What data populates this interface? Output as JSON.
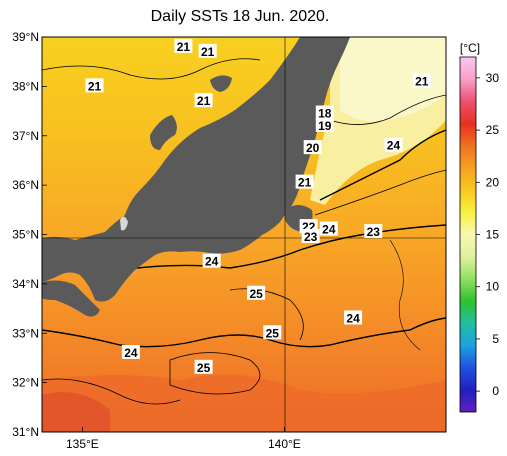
{
  "title": "Daily SSTs 18 Jun. 2020.",
  "map": {
    "lat_ticks": [
      "39°N",
      "38°N",
      "37°N",
      "36°N",
      "35°N",
      "34°N",
      "33°N",
      "32°N",
      "31°N"
    ],
    "lon_ticks": [
      "135°E",
      "140°E"
    ],
    "lat_range": [
      31,
      39
    ],
    "lon_range": [
      134,
      144
    ],
    "land_color": "#5a5a5a",
    "sea_base_color": "#f4a62a",
    "contour_labels": [
      {
        "text": "21",
        "lon": 137.5,
        "lat": 38.8
      },
      {
        "text": "21",
        "lon": 138.1,
        "lat": 38.7
      },
      {
        "text": "21",
        "lon": 135.3,
        "lat": 38.0
      },
      {
        "text": "21",
        "lon": 138.0,
        "lat": 37.7
      },
      {
        "text": "21",
        "lon": 143.4,
        "lat": 38.1
      },
      {
        "text": "18",
        "lon": 141.0,
        "lat": 37.45
      },
      {
        "text": "19",
        "lon": 141.0,
        "lat": 37.2
      },
      {
        "text": "20",
        "lon": 140.7,
        "lat": 36.75
      },
      {
        "text": "24",
        "lon": 142.7,
        "lat": 36.8
      },
      {
        "text": "21",
        "lon": 140.5,
        "lat": 36.05
      },
      {
        "text": "22",
        "lon": 140.6,
        "lat": 35.15
      },
      {
        "text": "23",
        "lon": 140.65,
        "lat": 34.95
      },
      {
        "text": "24",
        "lon": 141.1,
        "lat": 35.1
      },
      {
        "text": "23",
        "lon": 142.2,
        "lat": 35.05
      },
      {
        "text": "24",
        "lon": 138.2,
        "lat": 34.45
      },
      {
        "text": "25",
        "lon": 139.3,
        "lat": 33.8
      },
      {
        "text": "24",
        "lon": 141.7,
        "lat": 33.3
      },
      {
        "text": "25",
        "lon": 139.7,
        "lat": 33.0
      },
      {
        "text": "24",
        "lon": 136.2,
        "lat": 32.6
      },
      {
        "text": "25",
        "lon": 138.0,
        "lat": 32.3
      }
    ]
  },
  "colorbar": {
    "unit": "[°C]",
    "ticks": [
      "30",
      "25",
      "20",
      "15",
      "10",
      "5",
      "0"
    ],
    "range": [
      -2,
      32
    ],
    "stops": [
      "#f8c8f0",
      "#f8a0c8",
      "#f05070",
      "#e83020",
      "#f07020",
      "#f8a020",
      "#f8c820",
      "#f8f040",
      "#f8f8b0",
      "#e0f0a0",
      "#90e060",
      "#30c030",
      "#20c0a0",
      "#20a0e0",
      "#2050e0",
      "#2020c0",
      "#6020c0"
    ]
  }
}
